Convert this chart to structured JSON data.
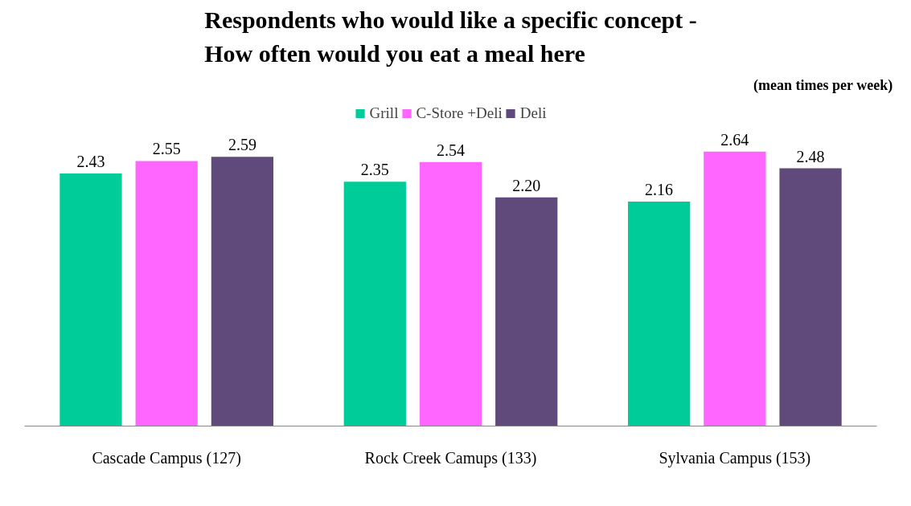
{
  "chart_data": {
    "type": "bar",
    "title": "Respondents who would like a specific concept -\nHow often would you eat a meal here",
    "subtitle": "(mean times per week)",
    "categories": [
      "Cascade Campus (127)",
      "Rock Creek Camups (133)",
      "Sylvania Campus (153)"
    ],
    "series": [
      {
        "name": "Grill",
        "color": "#00cc99",
        "values": [
          2.43,
          2.35,
          2.16
        ],
        "value_labels": [
          "2.43",
          "2.35",
          "2.16"
        ]
      },
      {
        "name": "C-Store +Deli",
        "color": "#ff66ff",
        "values": [
          2.55,
          2.54,
          2.64
        ],
        "value_labels": [
          "2.55",
          "2.54",
          "2.64"
        ]
      },
      {
        "name": "Deli",
        "color": "#604a7b",
        "values": [
          2.59,
          2.2,
          2.48
        ],
        "value_labels": [
          "2.59",
          "2.20",
          "2.48"
        ]
      }
    ],
    "tick_labels": "x",
    "legend": "top"
  }
}
